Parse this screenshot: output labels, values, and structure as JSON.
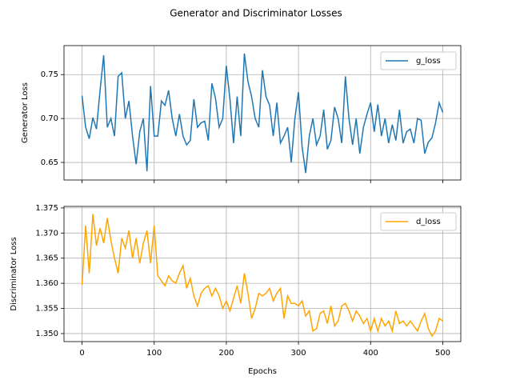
{
  "chart_data": {
    "title": "Generator and Discriminator Losses",
    "xlabel": "Epochs",
    "x": [
      0,
      5,
      10,
      15,
      20,
      25,
      30,
      35,
      40,
      45,
      50,
      55,
      60,
      65,
      70,
      75,
      80,
      85,
      90,
      95,
      100,
      105,
      110,
      115,
      120,
      125,
      130,
      135,
      140,
      145,
      150,
      155,
      160,
      165,
      170,
      175,
      180,
      185,
      190,
      195,
      200,
      205,
      210,
      215,
      220,
      225,
      230,
      235,
      240,
      245,
      250,
      255,
      260,
      265,
      270,
      275,
      280,
      285,
      290,
      295,
      300,
      305,
      310,
      315,
      320,
      325,
      330,
      335,
      340,
      345,
      350,
      355,
      360,
      365,
      370,
      375,
      380,
      385,
      390,
      395,
      400,
      405,
      410,
      415,
      420,
      425,
      430,
      435,
      440,
      445,
      450,
      455,
      460,
      465,
      470,
      475,
      480,
      485,
      490,
      495,
      500
    ],
    "xlim": [
      -25,
      525
    ],
    "xticks": [
      0,
      100,
      200,
      300,
      400,
      500
    ],
    "grid": true,
    "legend": "upper right",
    "panels": [
      {
        "type": "line",
        "ylabel": "Generator Loss",
        "ylim": [
          0.63,
          0.783
        ],
        "yticks": [
          0.65,
          {
            "value": 0.7,
            "label": "0.70"
          },
          0.75
        ],
        "series": [
          {
            "name": "g_loss",
            "color": "#1f77b4",
            "values": [
              0.726,
              0.69,
              0.677,
              0.701,
              0.688,
              0.732,
              0.772,
              0.69,
              0.7,
              0.68,
              0.748,
              0.752,
              0.7,
              0.72,
              0.68,
              0.648,
              0.685,
              0.7,
              0.64,
              0.737,
              0.68,
              0.68,
              0.72,
              0.715,
              0.732,
              0.7,
              0.68,
              0.705,
              0.68,
              0.67,
              0.675,
              0.722,
              0.69,
              0.695,
              0.697,
              0.675,
              0.74,
              0.723,
              0.69,
              0.7,
              0.76,
              0.722,
              0.672,
              0.725,
              0.68,
              0.774,
              0.742,
              0.725,
              0.7,
              0.69,
              0.755,
              0.725,
              0.715,
              0.68,
              0.718,
              0.672,
              0.68,
              0.69,
              0.65,
              0.7,
              0.73,
              0.668,
              0.638,
              0.68,
              0.7,
              0.67,
              0.68,
              0.71,
              0.665,
              0.675,
              0.713,
              0.7,
              0.672,
              0.748,
              0.7,
              0.67,
              0.7,
              0.66,
              0.69,
              0.705,
              0.718,
              0.685,
              0.716,
              0.68,
              0.7,
              0.672,
              0.693,
              0.675,
              0.71,
              0.672,
              0.685,
              0.688,
              0.672,
              0.7,
              0.698,
              0.66,
              0.673,
              0.678,
              0.695,
              0.718,
              0.707
            ]
          }
        ]
      },
      {
        "type": "line",
        "ylabel": "Discriminator Loss",
        "ylim": [
          1.3484,
          1.3753
        ],
        "yticks": [
          {
            "value": 1.35,
            "label": "1.350"
          },
          1.355,
          {
            "value": 1.36,
            "label": "1.360"
          },
          1.365,
          {
            "value": 1.37,
            "label": "1.370"
          },
          1.375
        ],
        "series": [
          {
            "name": "d_loss",
            "color": "#ffa500",
            "values": [
              1.3597,
              1.3715,
              1.362,
              1.3738,
              1.3675,
              1.371,
              1.368,
              1.373,
              1.3685,
              1.365,
              1.362,
              1.369,
              1.367,
              1.3705,
              1.365,
              1.369,
              1.364,
              1.368,
              1.3705,
              1.364,
              1.3715,
              1.3615,
              1.3605,
              1.3595,
              1.3615,
              1.3605,
              1.36,
              1.362,
              1.3635,
              1.359,
              1.361,
              1.3575,
              1.3555,
              1.358,
              1.359,
              1.3595,
              1.3575,
              1.359,
              1.3575,
              1.355,
              1.3565,
              1.3545,
              1.357,
              1.3595,
              1.356,
              1.362,
              1.358,
              1.353,
              1.355,
              1.358,
              1.3575,
              1.358,
              1.359,
              1.3565,
              1.358,
              1.359,
              1.353,
              1.3575,
              1.356,
              1.356,
              1.3555,
              1.3565,
              1.3535,
              1.3545,
              1.3505,
              1.351,
              1.354,
              1.3545,
              1.352,
              1.3555,
              1.3515,
              1.3525,
              1.3555,
              1.356,
              1.3545,
              1.3525,
              1.3545,
              1.3535,
              1.352,
              1.353,
              1.3505,
              1.353,
              1.3505,
              1.353,
              1.3515,
              1.3525,
              1.3505,
              1.3545,
              1.352,
              1.3525,
              1.3515,
              1.3525,
              1.3515,
              1.3505,
              1.3525,
              1.354,
              1.351,
              1.3495,
              1.3505,
              1.353,
              1.3525
            ]
          }
        ]
      }
    ]
  }
}
